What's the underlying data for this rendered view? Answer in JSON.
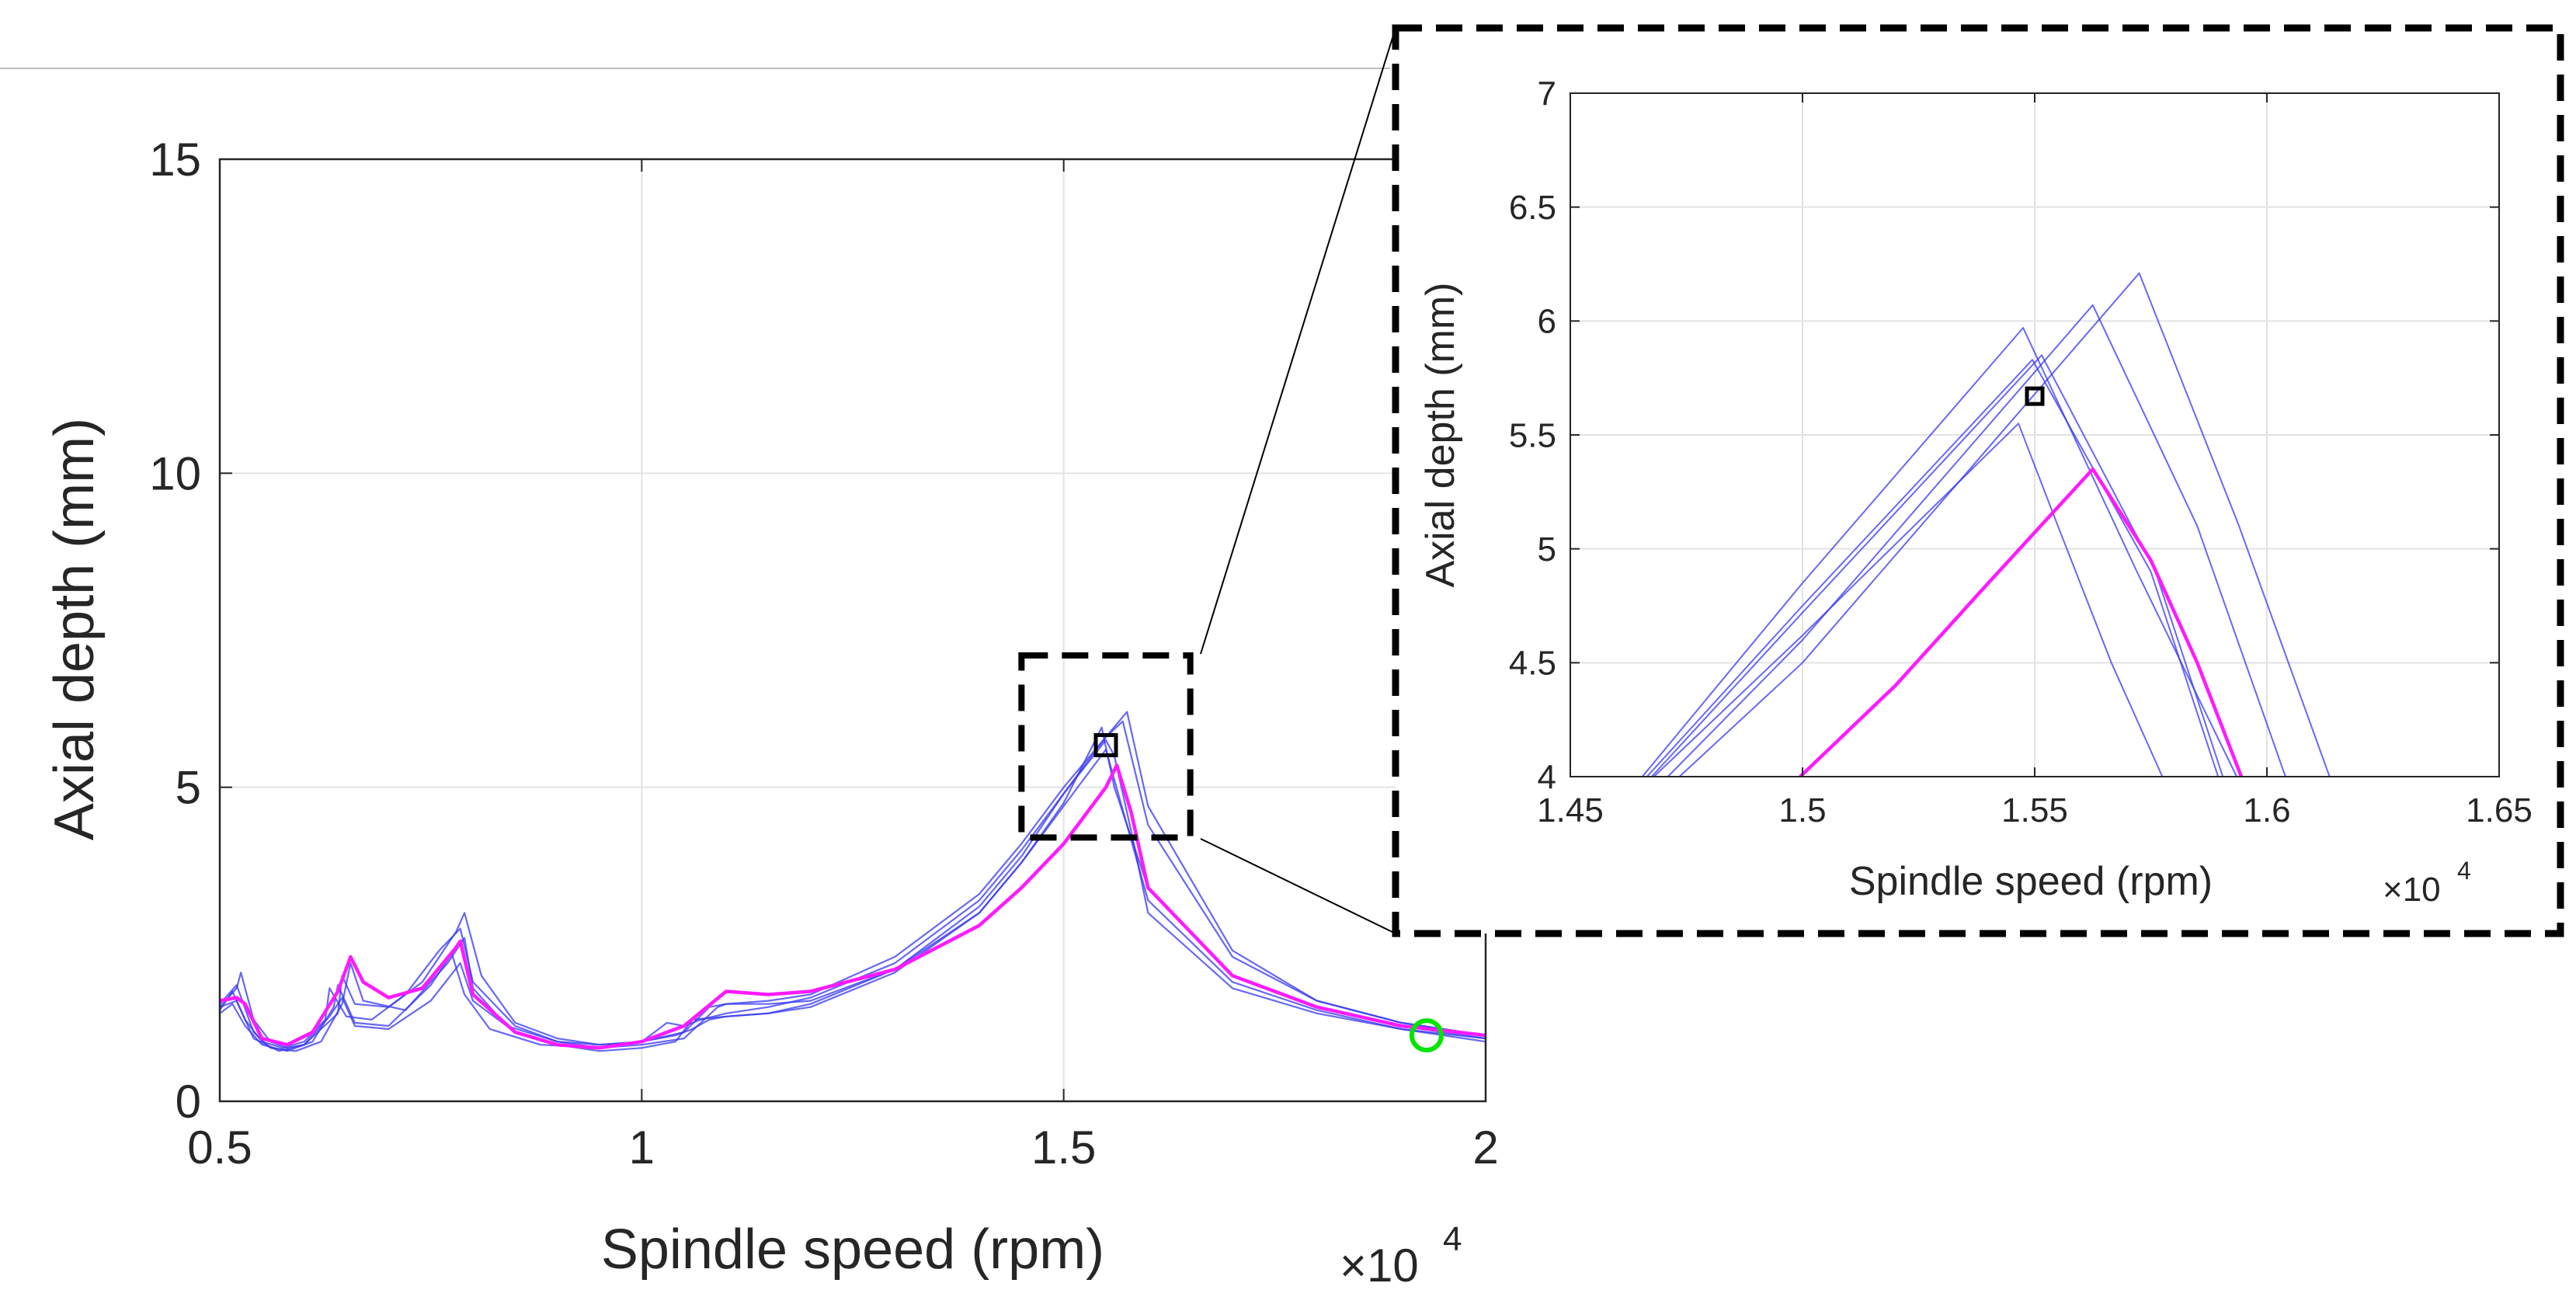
{
  "chart_data": [
    {
      "type": "line",
      "id": "main",
      "xlabel": "Spindle speed (rpm)",
      "ylabel": "Axial depth (mm)",
      "x_multiplier_label": "×10",
      "x_multiplier_exp": "4",
      "xlim": [
        0.5,
        2.0
      ],
      "ylim": [
        0,
        15
      ],
      "xticks": [
        0.5,
        1,
        1.5,
        2
      ],
      "xtick_labels": [
        "0.5",
        "1",
        "1.5",
        "2"
      ],
      "yticks": [
        0,
        5,
        10,
        15
      ],
      "ytick_labels": [
        "0",
        "5",
        "10",
        "15"
      ],
      "grid": true,
      "series": [
        {
          "name": "blue-1",
          "color": "#3535f0",
          "x": [
            0.5,
            0.51,
            0.515,
            0.53,
            0.55,
            0.575,
            0.6,
            0.625,
            0.63,
            0.65,
            0.68,
            0.72,
            0.76,
            0.785,
            0.8,
            0.85,
            0.9,
            0.95,
            1.0,
            1.04,
            1.06,
            1.08,
            1.1,
            1.15,
            1.2,
            1.3,
            1.4,
            1.45,
            1.5,
            1.55,
            1.56,
            1.58,
            1.6,
            1.7,
            1.8,
            1.9,
            2.0
          ],
          "y": [
            1.45,
            1.65,
            1.75,
            1.3,
            0.95,
            0.85,
            0.95,
            1.3,
            1.8,
            1.35,
            1.3,
            1.7,
            2.4,
            2.75,
            1.9,
            1.2,
            0.95,
            0.9,
            0.95,
            1.05,
            1.15,
            1.3,
            1.35,
            1.4,
            1.55,
            2.1,
            3.1,
            3.9,
            4.9,
            5.75,
            5.5,
            4.3,
            3.0,
            1.8,
            1.4,
            1.15,
            1.0
          ]
        },
        {
          "name": "blue-2",
          "color": "#3535f0",
          "x": [
            0.5,
            0.52,
            0.525,
            0.54,
            0.56,
            0.58,
            0.6,
            0.64,
            0.645,
            0.66,
            0.7,
            0.74,
            0.78,
            0.79,
            0.81,
            0.85,
            0.9,
            0.95,
            1.0,
            1.05,
            1.08,
            1.1,
            1.15,
            1.2,
            1.3,
            1.4,
            1.45,
            1.5,
            1.55,
            1.57,
            1.6,
            1.7,
            1.8,
            1.9,
            2.0
          ],
          "y": [
            1.5,
            1.8,
            2.05,
            1.3,
            0.95,
            0.85,
            0.9,
            1.4,
            2.0,
            1.55,
            1.5,
            1.9,
            2.7,
            3.0,
            2.0,
            1.25,
            1.0,
            0.9,
            0.95,
            1.1,
            1.5,
            1.55,
            1.6,
            1.7,
            2.3,
            3.3,
            4.1,
            5.0,
            5.8,
            6.05,
            4.4,
            2.3,
            1.6,
            1.25,
            1.05
          ]
        },
        {
          "name": "blue-3",
          "color": "#3535f0",
          "x": [
            0.5,
            0.51,
            0.52,
            0.54,
            0.56,
            0.59,
            0.62,
            0.645,
            0.655,
            0.67,
            0.72,
            0.77,
            0.79,
            0.8,
            0.84,
            0.9,
            0.95,
            1.0,
            1.03,
            1.05,
            1.07,
            1.1,
            1.15,
            1.2,
            1.3,
            1.4,
            1.45,
            1.5,
            1.55,
            1.575,
            1.6,
            1.7,
            1.8,
            1.9,
            2.0
          ],
          "y": [
            1.55,
            1.7,
            1.85,
            1.1,
            0.85,
            0.8,
            0.95,
            1.55,
            2.2,
            1.6,
            1.45,
            2.2,
            2.6,
            1.8,
            1.2,
            0.95,
            0.85,
            0.95,
            1.25,
            1.2,
            1.3,
            1.4,
            1.5,
            1.65,
            2.2,
            3.2,
            4.0,
            4.9,
            5.8,
            6.2,
            4.7,
            2.4,
            1.6,
            1.25,
            1.05
          ]
        },
        {
          "name": "blue-4",
          "color": "#3535f0",
          "x": [
            0.5,
            0.515,
            0.53,
            0.55,
            0.58,
            0.61,
            0.635,
            0.64,
            0.66,
            0.7,
            0.75,
            0.775,
            0.79,
            0.82,
            0.88,
            0.95,
            1.0,
            1.05,
            1.09,
            1.1,
            1.15,
            1.2,
            1.3,
            1.4,
            1.45,
            1.5,
            1.545,
            1.56,
            1.6,
            1.7,
            1.8,
            1.9,
            2.0
          ],
          "y": [
            1.4,
            1.55,
            1.2,
            0.9,
            0.8,
            0.95,
            1.5,
            1.85,
            1.25,
            1.2,
            1.85,
            2.35,
            1.7,
            1.15,
            0.9,
            0.85,
            0.9,
            1.0,
            1.5,
            1.55,
            1.55,
            1.6,
            2.1,
            3.0,
            3.8,
            4.75,
            5.95,
            5.0,
            3.4,
            2.0,
            1.5,
            1.2,
            1.0
          ]
        },
        {
          "name": "blue-5",
          "color": "#3535f0",
          "x": [
            0.5,
            0.52,
            0.54,
            0.57,
            0.6,
            0.63,
            0.645,
            0.66,
            0.7,
            0.75,
            0.785,
            0.8,
            0.85,
            0.9,
            0.95,
            1.0,
            1.04,
            1.06,
            1.1,
            1.15,
            1.2,
            1.3,
            1.4,
            1.45,
            1.5,
            1.55,
            1.6,
            1.7,
            1.8,
            1.9,
            2.0
          ],
          "y": [
            1.5,
            1.6,
            1.0,
            0.8,
            0.9,
            1.35,
            1.65,
            1.2,
            1.15,
            1.6,
            2.2,
            1.6,
            1.1,
            0.9,
            0.8,
            0.85,
            0.95,
            1.3,
            1.35,
            1.4,
            1.5,
            2.05,
            3.0,
            3.8,
            4.7,
            5.6,
            3.2,
            1.9,
            1.45,
            1.15,
            0.95
          ]
        },
        {
          "name": "magenta",
          "color": "#ff1aff",
          "x": [
            0.5,
            0.52,
            0.53,
            0.55,
            0.58,
            0.61,
            0.64,
            0.655,
            0.67,
            0.7,
            0.74,
            0.78,
            0.785,
            0.8,
            0.85,
            0.9,
            0.95,
            1.0,
            1.05,
            1.1,
            1.15,
            1.2,
            1.3,
            1.4,
            1.45,
            1.5,
            1.55,
            1.563,
            1.58,
            1.6,
            1.7,
            1.8,
            1.9,
            2.0
          ],
          "y": [
            1.6,
            1.65,
            1.55,
            1.0,
            0.9,
            1.1,
            1.75,
            2.3,
            1.9,
            1.65,
            1.8,
            2.45,
            2.55,
            1.7,
            1.1,
            0.9,
            0.85,
            0.95,
            1.2,
            1.75,
            1.7,
            1.75,
            2.1,
            2.8,
            3.4,
            4.1,
            5.0,
            5.35,
            4.6,
            3.4,
            2.0,
            1.5,
            1.2,
            1.05
          ]
        }
      ],
      "markers": [
        {
          "name": "square-marker",
          "x": 1.55,
          "y": 5.67,
          "color": "#000000"
        },
        {
          "name": "green-circle-marker",
          "x": 1.93,
          "y": 1.05,
          "color": "#00e400"
        }
      ],
      "zoom_box": {
        "x": [
          1.45,
          1.65
        ],
        "y": [
          4.2,
          7.1
        ]
      }
    },
    {
      "type": "line",
      "id": "inset",
      "xlabel": "Spindle speed (rpm)",
      "ylabel": "Axial depth (mm)",
      "x_multiplier_label": "×10",
      "x_multiplier_exp": "4",
      "xlim": [
        1.45,
        1.65
      ],
      "ylim": [
        4,
        7
      ],
      "xticks": [
        1.45,
        1.5,
        1.55,
        1.6,
        1.65
      ],
      "xtick_labels": [
        "1.45",
        "1.5",
        "1.55",
        "1.6",
        "1.65"
      ],
      "yticks": [
        4,
        4.5,
        5,
        5.5,
        6,
        6.5,
        7
      ],
      "ytick_labels": [
        "4",
        "4.5",
        "5",
        "5.5",
        "6",
        "6.5",
        "7"
      ],
      "grid": true,
      "series": [
        {
          "name": "inset-blue-1",
          "color": "#3535f0",
          "x": [
            1.4655,
            1.5,
            1.5475,
            1.572,
            1.5935
          ],
          "y": [
            4.0,
            4.85,
            5.97,
            4.9,
            4.0
          ]
        },
        {
          "name": "inset-blue-2",
          "color": "#3535f0",
          "x": [
            1.4665,
            1.5,
            1.5495,
            1.575,
            1.5895
          ],
          "y": [
            4.0,
            4.75,
            5.83,
            4.9,
            4.0
          ]
        },
        {
          "name": "inset-blue-3",
          "color": "#3535f0",
          "x": [
            1.4675,
            1.5,
            1.5515,
            1.576,
            1.5905
          ],
          "y": [
            4.0,
            4.72,
            5.85,
            4.9,
            4.0
          ]
        },
        {
          "name": "inset-blue-4",
          "color": "#3535f0",
          "x": [
            1.471,
            1.5,
            1.5625,
            1.585,
            1.604
          ],
          "y": [
            4.0,
            4.6,
            6.07,
            5.1,
            4.0
          ]
        },
        {
          "name": "inset-blue-5",
          "color": "#3535f0",
          "x": [
            1.4735,
            1.5,
            1.5725,
            1.594,
            1.6135
          ],
          "y": [
            4.0,
            4.5,
            6.21,
            5.1,
            4.0
          ]
        },
        {
          "name": "inset-blue-6",
          "color": "#3535f0",
          "x": [
            1.468,
            1.5,
            1.5465,
            1.555,
            1.5665,
            1.5775
          ],
          "y": [
            4.0,
            4.62,
            5.55,
            5.1,
            4.5,
            4.0
          ]
        },
        {
          "name": "inset-magenta",
          "color": "#ff1aff",
          "x": [
            1.4995,
            1.52,
            1.54,
            1.5625,
            1.575,
            1.585,
            1.5945
          ],
          "y": [
            4.0,
            4.4,
            4.85,
            5.35,
            4.95,
            4.5,
            4.0
          ]
        }
      ],
      "markers": [
        {
          "name": "inset-square-marker",
          "x": 1.55,
          "y": 5.67,
          "color": "#000000"
        }
      ]
    }
  ]
}
